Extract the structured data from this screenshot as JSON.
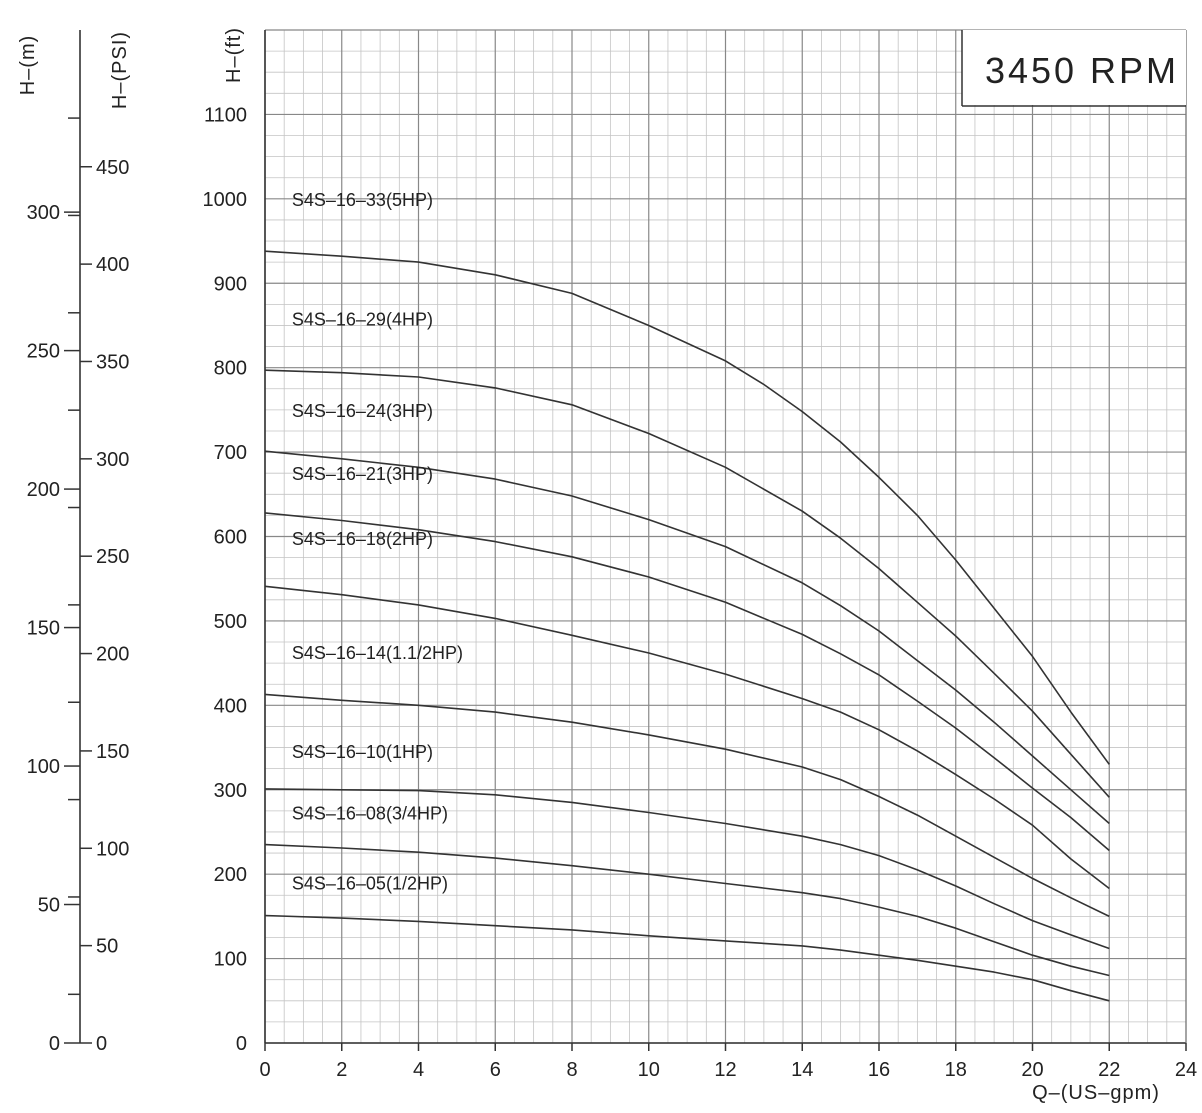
{
  "chart_data": {
    "type": "line",
    "rpm_label": "3450 RPM",
    "xlabel": "Q–(US–gpm)",
    "ylabel": "H–(ft)",
    "ylabel_psi": "H–(PSI)",
    "ylabel_m": "H–(m)",
    "xlim": [
      0,
      24
    ],
    "ylim": [
      0,
      1200
    ],
    "grid": true,
    "x_ticks": [
      0,
      2,
      4,
      6,
      8,
      10,
      12,
      14,
      16,
      18,
      20,
      22,
      24
    ],
    "x_tick_labels": [
      "0",
      "2",
      "4",
      "6",
      "8",
      "10",
      "12",
      "14",
      "16",
      "18",
      "20",
      "22",
      "24"
    ],
    "y_ticks": [
      0,
      100,
      200,
      300,
      400,
      500,
      600,
      700,
      800,
      900,
      1000,
      1100
    ],
    "y_tick_labels": [
      "0",
      "100",
      "200",
      "300",
      "400",
      "500",
      "600",
      "700",
      "800",
      "900",
      "1000",
      "1100"
    ],
    "psi_ticks": [
      0,
      50,
      100,
      150,
      200,
      250,
      300,
      350,
      400,
      450
    ],
    "psi_tick_labels": [
      "0",
      "50",
      "100",
      "150",
      "200",
      "250",
      "300",
      "350",
      "400",
      "450"
    ],
    "m_ticks": [
      0,
      50,
      100,
      150,
      200,
      250,
      300
    ],
    "m_tick_labels": [
      "0",
      "50",
      "100",
      "150",
      "200",
      "250",
      "300"
    ],
    "series": [
      {
        "name": "S4S–16–33(5HP)",
        "label_y": 1000,
        "x": [
          0,
          2,
          4,
          6,
          8,
          10,
          12,
          13,
          14,
          15,
          16,
          17,
          18,
          19,
          20,
          21,
          22
        ],
        "y": [
          938,
          932,
          925,
          910,
          888,
          850,
          808,
          780,
          748,
          712,
          670,
          625,
          572,
          515,
          458,
          392,
          330
        ]
      },
      {
        "name": "S4S–16–29(4HP)",
        "label_y": 858,
        "x": [
          0,
          2,
          4,
          6,
          8,
          10,
          12,
          14,
          15,
          16,
          17,
          18,
          19,
          20,
          21,
          22
        ],
        "y": [
          797,
          794,
          789,
          776,
          756,
          722,
          682,
          630,
          598,
          562,
          522,
          482,
          438,
          393,
          342,
          291
        ]
      },
      {
        "name": "S4S–16–24(3HP)",
        "label_y": 750,
        "x": [
          0,
          2,
          4,
          6,
          8,
          10,
          12,
          14,
          15,
          16,
          17,
          18,
          19,
          20,
          21,
          22
        ],
        "y": [
          701,
          692,
          682,
          668,
          648,
          620,
          588,
          545,
          518,
          488,
          453,
          418,
          380,
          340,
          300,
          260
        ]
      },
      {
        "name": "S4S–16–21(3HP)",
        "label_y": 675,
        "x": [
          0,
          2,
          4,
          6,
          8,
          10,
          12,
          14,
          15,
          16,
          17,
          18,
          19,
          20,
          21,
          22
        ],
        "y": [
          628,
          619,
          608,
          594,
          576,
          552,
          522,
          484,
          461,
          436,
          405,
          373,
          338,
          302,
          267,
          228
        ]
      },
      {
        "name": "S4S–16–18(2HP)",
        "label_y": 598,
        "x": [
          0,
          2,
          4,
          6,
          8,
          10,
          12,
          14,
          15,
          16,
          17,
          18,
          19,
          20,
          21,
          22
        ],
        "y": [
          541,
          531,
          519,
          503,
          483,
          462,
          437,
          408,
          392,
          371,
          346,
          318,
          289,
          258,
          218,
          183
        ]
      },
      {
        "name": "S4S–16–14(1.1/2HP)",
        "label_y": 463,
        "x": [
          0,
          2,
          4,
          6,
          8,
          10,
          12,
          14,
          15,
          16,
          17,
          18,
          19,
          20,
          21,
          22
        ],
        "y": [
          413,
          406,
          400,
          392,
          380,
          365,
          348,
          327,
          312,
          292,
          270,
          245,
          220,
          195,
          172,
          150
        ]
      },
      {
        "name": "S4S–16–10(1HP)",
        "label_y": 346,
        "x": [
          0,
          2,
          4,
          6,
          8,
          10,
          12,
          14,
          15,
          16,
          17,
          18,
          19,
          20,
          21,
          22
        ],
        "y": [
          301,
          300,
          299,
          294,
          285,
          273,
          260,
          245,
          235,
          222,
          205,
          186,
          165,
          145,
          128,
          112
        ]
      },
      {
        "name": "S4S–16–08(3/4HP)",
        "label_y": 273,
        "x": [
          0,
          2,
          4,
          6,
          8,
          10,
          12,
          14,
          15,
          16,
          17,
          18,
          19,
          20,
          21,
          22
        ],
        "y": [
          235,
          231,
          226,
          219,
          210,
          200,
          189,
          178,
          171,
          161,
          150,
          136,
          120,
          104,
          91,
          80
        ]
      },
      {
        "name": "S4S–16–05(1/2HP)",
        "label_y": 190,
        "x": [
          0,
          2,
          4,
          6,
          8,
          10,
          12,
          14,
          15,
          16,
          17,
          18,
          19,
          20,
          21,
          22
        ],
        "y": [
          151,
          148,
          144,
          139,
          134,
          127,
          121,
          115,
          110,
          104,
          98,
          91,
          84,
          75,
          62,
          50
        ]
      }
    ]
  }
}
